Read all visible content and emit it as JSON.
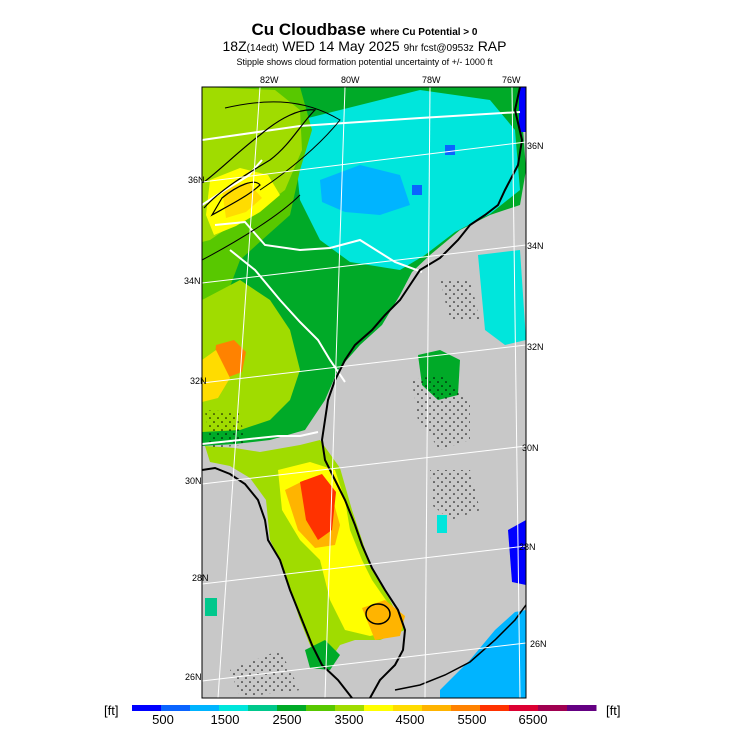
{
  "title": {
    "main": "Cu Cloudbase",
    "condition": "where Cu Potential > 0",
    "valid_prefix": "18Z",
    "valid_local": "(14edt)",
    "valid_date": "WED 14 May 2025",
    "run": "9hr fcst@0953z",
    "model": "RAP",
    "note": "Stipple shows cloud formation potential uncertainty of +/- 1000 ft"
  },
  "map": {
    "region": "Southeastern United States (Carolinas, Georgia, Florida)",
    "lon_labels": [
      "82W",
      "80W",
      "78W",
      "76W"
    ],
    "lat_labels_left": [
      "36N",
      "34N",
      "32N",
      "30N",
      "28N",
      "26N"
    ],
    "lat_labels_right": [
      "36N",
      "34N",
      "32N",
      "30N",
      "28N",
      "26N"
    ],
    "colors": {
      "no_data": "#c8c8c8",
      "coast": "#000000",
      "borders": "#ffffff"
    }
  },
  "legend": {
    "unit_left": "[ft]",
    "unit_right": "[ft]",
    "tick_labels": [
      "500",
      "1500",
      "2500",
      "3500",
      "4500",
      "5500",
      "6500"
    ],
    "colors": [
      "#0000ff",
      "#0a64ff",
      "#00b4ff",
      "#00e6dc",
      "#00c88c",
      "#00aa28",
      "#58c800",
      "#a0dc00",
      "#ffff00",
      "#ffdc00",
      "#ffb400",
      "#ff8200",
      "#ff3200",
      "#dc0032",
      "#a00050",
      "#640082"
    ]
  }
}
